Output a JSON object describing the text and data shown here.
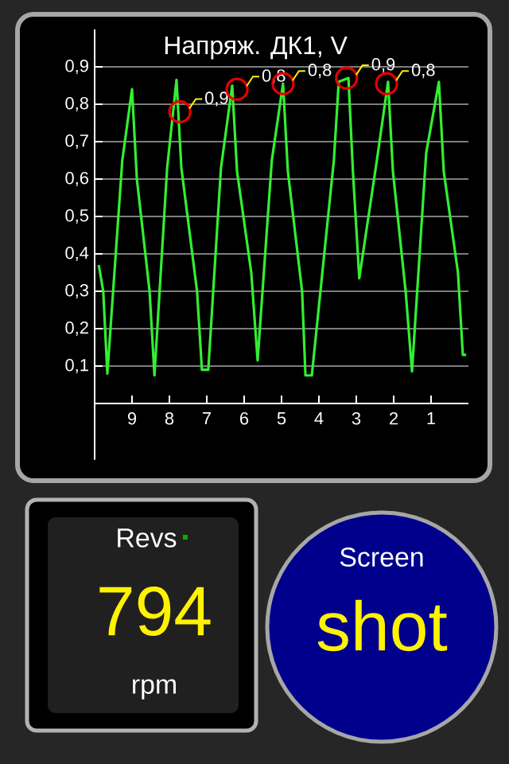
{
  "chart_data": [
    {
      "type": "line",
      "title": "Напряж. ДК1, V",
      "xlim": [
        10,
        0
      ],
      "ylim": [
        -0.15,
        1.0
      ],
      "xticks": [
        9,
        8,
        7,
        6,
        5,
        4,
        3,
        2,
        1
      ],
      "yticks": [
        {
          "value": 0.1,
          "label": "0,1"
        },
        {
          "value": 0.2,
          "label": "0,2"
        },
        {
          "value": 0.3,
          "label": "0,3"
        },
        {
          "value": 0.4,
          "label": "0,4"
        },
        {
          "value": 0.5,
          "label": "0,5"
        },
        {
          "value": 0.6,
          "label": "0,6"
        },
        {
          "value": 0.7,
          "label": "0,7"
        },
        {
          "value": 0.8,
          "label": "0,8"
        },
        {
          "value": 0.9,
          "label": "0,9"
        }
      ],
      "grid": "y",
      "series": [
        {
          "color": "#33ee33",
          "x": [
            9.89,
            9.77,
            9.66,
            9.26,
            9.0,
            8.87,
            8.53,
            8.4,
            8.06,
            7.81,
            7.68,
            7.26,
            7.13,
            6.96,
            6.62,
            6.32,
            6.19,
            5.81,
            5.64,
            5.26,
            4.96,
            4.83,
            4.45,
            4.36,
            4.19,
            3.6,
            3.47,
            3.21,
            3.09,
            2.92,
            2.45,
            2.15,
            2.02,
            1.68,
            1.51,
            1.13,
            0.79,
            0.66,
            0.28,
            0.15,
            0.06
          ],
          "values": [
            0.37,
            0.3,
            0.08,
            0.65,
            0.84,
            0.6,
            0.3,
            0.075,
            0.63,
            0.865,
            0.63,
            0.3,
            0.09,
            0.09,
            0.63,
            0.85,
            0.62,
            0.35,
            0.115,
            0.65,
            0.855,
            0.62,
            0.3,
            0.075,
            0.075,
            0.65,
            0.86,
            0.87,
            0.62,
            0.335,
            0.65,
            0.86,
            0.62,
            0.3,
            0.086,
            0.67,
            0.86,
            0.62,
            0.35,
            0.13,
            0.13
          ]
        }
      ],
      "annotations": [
        {
          "text": "0,9",
          "x": 7.72,
          "y": 0.78
        },
        {
          "text": "0,8",
          "x": 6.19,
          "y": 0.84
        },
        {
          "text": "0,8",
          "x": 4.96,
          "y": 0.855
        },
        {
          "text": "0,9",
          "x": 3.26,
          "y": 0.87
        },
        {
          "text": "0,8",
          "x": 2.19,
          "y": 0.855
        }
      ]
    },
    {
      "type": "other",
      "title": "Revs",
      "annotations": [
        "794",
        "rpm"
      ]
    },
    {
      "type": "other",
      "title": "Screen",
      "annotations": [
        "shot"
      ]
    }
  ]
}
